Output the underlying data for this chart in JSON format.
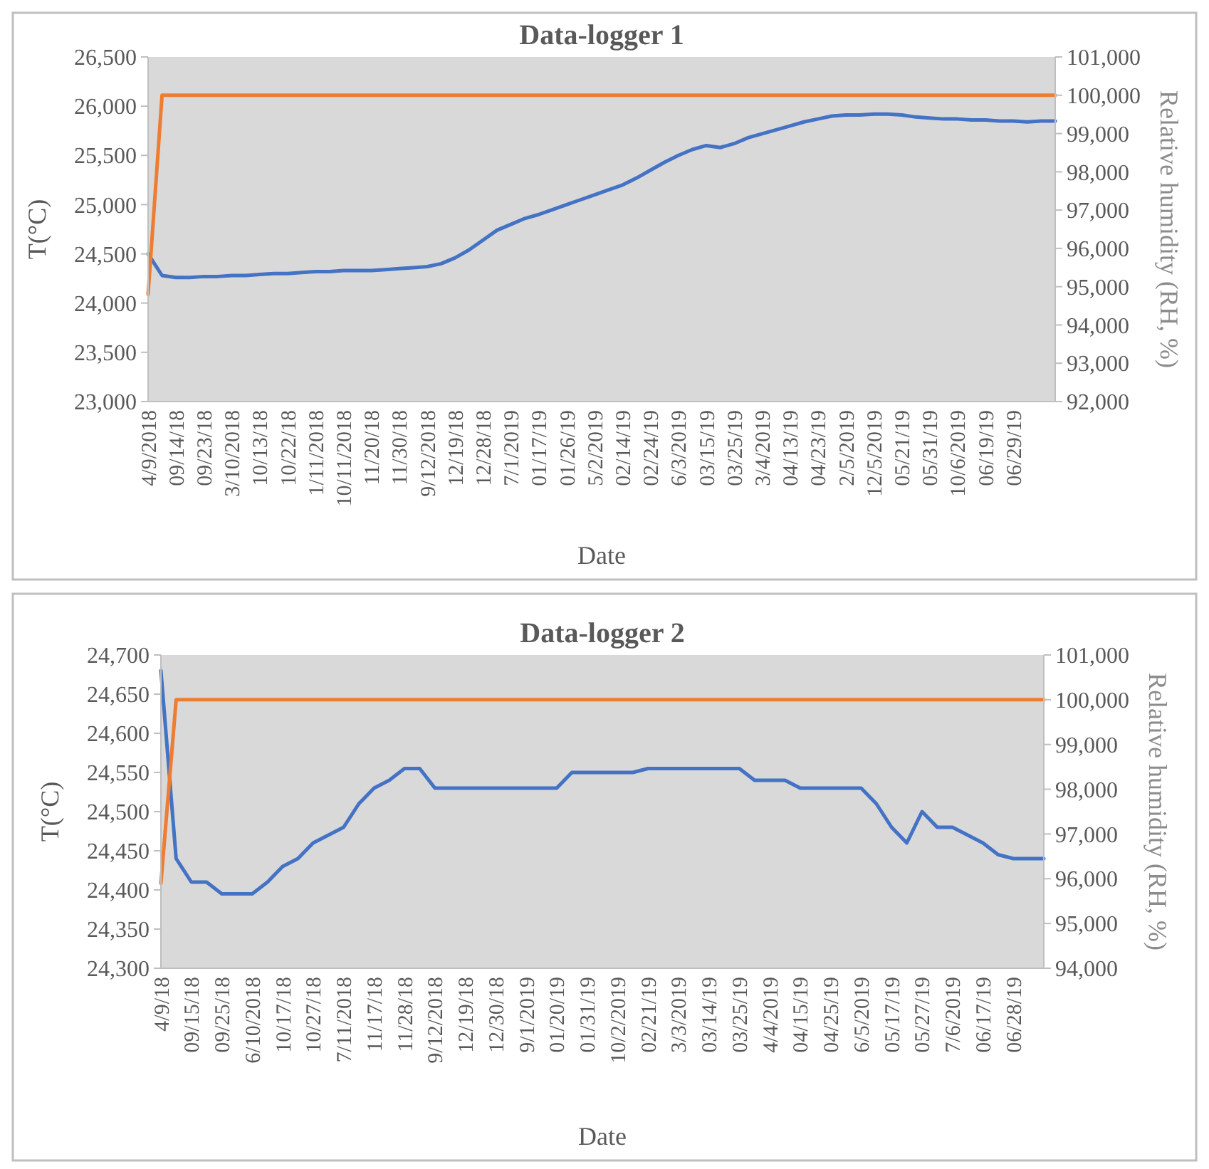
{
  "chart_data": [
    {
      "type": "line",
      "title": "Data-logger 1",
      "xlabel": "Date",
      "ylabel": "T(°C)",
      "y2label": "Relative humidity (RH, %)",
      "categories": [
        "4/9/2018",
        null,
        "09/14/18",
        null,
        "09/23/18",
        null,
        "3/10/2018",
        null,
        "10/13/18",
        null,
        "10/22/18",
        null,
        "1/11/2018",
        null,
        "10/11/2018",
        null,
        "11/20/18",
        null,
        "11/30/18",
        null,
        "9/12/2018",
        null,
        "12/19/18",
        null,
        "12/28/18",
        null,
        "7/1/2019",
        null,
        "01/17/19",
        null,
        "01/26/19",
        null,
        "5/2/2019",
        null,
        "02/14/19",
        null,
        "02/24/19",
        null,
        "6/3/2019",
        null,
        "03/15/19",
        null,
        "03/25/19",
        null,
        "3/4/2019",
        null,
        "04/13/19",
        null,
        "04/23/19",
        null,
        "2/5/2019",
        null,
        "12/5/2019",
        null,
        "05/21/19",
        null,
        "05/31/19",
        null,
        "10/6/2019",
        null,
        "06/19/19",
        null,
        "06/29/19",
        null,
        null,
        null
      ],
      "series": [
        {
          "color": "#4472c4",
          "values": [
            24500,
            24280,
            24260,
            24260,
            24270,
            24270,
            24280,
            24280,
            24290,
            24300,
            24300,
            24310,
            24320,
            24320,
            24330,
            24330,
            24330,
            24340,
            24350,
            24360,
            24370,
            24400,
            24460,
            24540,
            24640,
            24740,
            24800,
            24860,
            24900,
            24950,
            25000,
            25050,
            25100,
            25150,
            25200,
            25270,
            25350,
            25430,
            25500,
            25560,
            25600,
            25580,
            25620,
            25680,
            25720,
            25760,
            25800,
            25840,
            25870,
            25900,
            25910,
            25910,
            25920,
            25920,
            25910,
            25890,
            25880,
            25870,
            25870,
            25860,
            25860,
            25850,
            25850,
            25840,
            25850,
            25850
          ]
        },
        {
          "color": "#ed7d31",
          "axis": "y2",
          "values": [
            94800,
            100000,
            100000,
            100000,
            100000,
            100000,
            100000,
            100000,
            100000,
            100000,
            100000,
            100000,
            100000,
            100000,
            100000,
            100000,
            100000,
            100000,
            100000,
            100000,
            100000,
            100000,
            100000,
            100000,
            100000,
            100000,
            100000,
            100000,
            100000,
            100000,
            100000,
            100000,
            100000,
            100000,
            100000,
            100000,
            100000,
            100000,
            100000,
            100000,
            100000,
            100000,
            100000,
            100000,
            100000,
            100000,
            100000,
            100000,
            100000,
            100000,
            100000,
            100000,
            100000,
            100000,
            100000,
            100000,
            100000,
            100000,
            100000,
            100000,
            100000,
            100000,
            100000,
            100000,
            100000,
            100000
          ]
        }
      ],
      "ylim": [
        23000,
        26500
      ],
      "yticks": [
        {
          "value": 23000,
          "label": "23,000"
        },
        {
          "value": 23500,
          "label": "23,500"
        },
        {
          "value": 24000,
          "label": "24,000"
        },
        {
          "value": 24500,
          "label": "24,500"
        },
        {
          "value": 25000,
          "label": "25,000"
        },
        {
          "value": 25500,
          "label": "25,500"
        },
        {
          "value": 26000,
          "label": "26,000"
        },
        {
          "value": 26500,
          "label": "26,500"
        }
      ],
      "y2lim": [
        92000,
        101000
      ],
      "y2ticks": [
        {
          "value": 92000,
          "label": "92,000"
        },
        {
          "value": 93000,
          "label": "93,000"
        },
        {
          "value": 94000,
          "label": "94,000"
        },
        {
          "value": 95000,
          "label": "95,000"
        },
        {
          "value": 96000,
          "label": "96,000"
        },
        {
          "value": 97000,
          "label": "97,000"
        },
        {
          "value": 98000,
          "label": "98,000"
        },
        {
          "value": 99000,
          "label": "99,000"
        },
        {
          "value": 100000,
          "label": "100,000"
        },
        {
          "value": 101000,
          "label": "101,000"
        }
      ],
      "grid": false
    },
    {
      "type": "line",
      "title": "Data-logger 2",
      "xlabel": "Date",
      "ylabel": "T(°C)",
      "y2label": "Relative humidity (RH, %)",
      "categories": [
        "4/9/18",
        null,
        "09/15/18",
        null,
        "09/25/18",
        null,
        "6/10/2018",
        null,
        "10/17/18",
        null,
        "10/27/18",
        null,
        "7/11/2018",
        null,
        "11/17/18",
        null,
        "11/28/18",
        null,
        "9/12/2018",
        null,
        "12/19/18",
        null,
        "12/30/18",
        null,
        "9/1/2019",
        null,
        "01/20/19",
        null,
        "01/31/19",
        null,
        "10/2/2019",
        null,
        "02/21/19",
        null,
        "3/3/2019",
        null,
        "03/14/19",
        null,
        "03/25/19",
        null,
        "4/4/2019",
        null,
        "04/15/19",
        null,
        "04/25/19",
        null,
        "6/5/2019",
        null,
        "05/17/19",
        null,
        "05/27/19",
        null,
        "7/6/2019",
        null,
        "06/17/19",
        null,
        "06/28/19",
        null,
        null
      ],
      "series": [
        {
          "color": "#4472c4",
          "values": [
            24680,
            24440,
            24410,
            24410,
            24395,
            24395,
            24395,
            24410,
            24430,
            24440,
            24460,
            24470,
            24480,
            24510,
            24530,
            24540,
            24555,
            24555,
            24530,
            24530,
            24530,
            24530,
            24530,
            24530,
            24530,
            24530,
            24530,
            24550,
            24550,
            24550,
            24550,
            24550,
            24555,
            24555,
            24555,
            24555,
            24555,
            24555,
            24555,
            24540,
            24540,
            24540,
            24530,
            24530,
            24530,
            24530,
            24530,
            24510,
            24480,
            24460,
            24500,
            24480,
            24480,
            24470,
            24460,
            24445,
            24440,
            24440,
            24440
          ]
        },
        {
          "color": "#ed7d31",
          "axis": "y2",
          "values": [
            95900,
            100000,
            100000,
            100000,
            100000,
            100000,
            100000,
            100000,
            100000,
            100000,
            100000,
            100000,
            100000,
            100000,
            100000,
            100000,
            100000,
            100000,
            100000,
            100000,
            100000,
            100000,
            100000,
            100000,
            100000,
            100000,
            100000,
            100000,
            100000,
            100000,
            100000,
            100000,
            100000,
            100000,
            100000,
            100000,
            100000,
            100000,
            100000,
            100000,
            100000,
            100000,
            100000,
            100000,
            100000,
            100000,
            100000,
            100000,
            100000,
            100000,
            100000,
            100000,
            100000,
            100000,
            100000,
            100000,
            100000,
            100000,
            100000
          ]
        }
      ],
      "ylim": [
        24300,
        24700
      ],
      "yticks": [
        {
          "value": 24300,
          "label": "24,300"
        },
        {
          "value": 24350,
          "label": "24,350"
        },
        {
          "value": 24400,
          "label": "24,400"
        },
        {
          "value": 24450,
          "label": "24,450"
        },
        {
          "value": 24500,
          "label": "24,500"
        },
        {
          "value": 24550,
          "label": "24,550"
        },
        {
          "value": 24600,
          "label": "24,600"
        },
        {
          "value": 24650,
          "label": "24,650"
        },
        {
          "value": 24700,
          "label": "24,700"
        }
      ],
      "y2lim": [
        94000,
        101000
      ],
      "y2ticks": [
        {
          "value": 94000,
          "label": "94,000"
        },
        {
          "value": 95000,
          "label": "95,000"
        },
        {
          "value": 96000,
          "label": "96,000"
        },
        {
          "value": 97000,
          "label": "97,000"
        },
        {
          "value": 98000,
          "label": "98,000"
        },
        {
          "value": 99000,
          "label": "99,000"
        },
        {
          "value": 100000,
          "label": "100,000"
        },
        {
          "value": 101000,
          "label": "101,000"
        }
      ],
      "grid": false
    }
  ]
}
